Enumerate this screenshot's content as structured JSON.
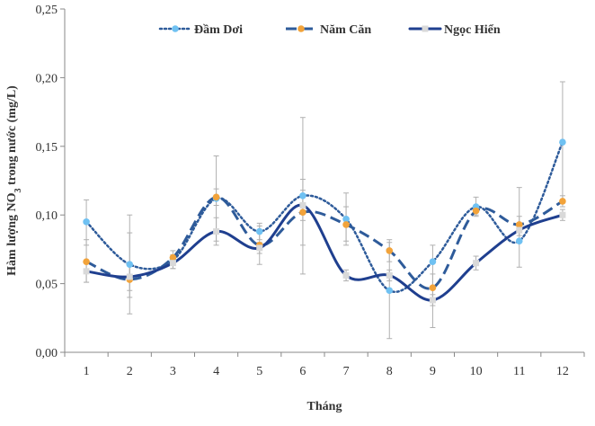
{
  "chart_data": {
    "type": "line",
    "categories": [
      "1",
      "2",
      "3",
      "4",
      "5",
      "6",
      "7",
      "8",
      "9",
      "10",
      "11",
      "12"
    ],
    "xlabel": "Tháng",
    "ylabel_parts": {
      "pre": "Hàm lượng  NO",
      "sub": "3",
      "post": " trong nước (mg/L)"
    },
    "ylim": [
      0,
      0.25
    ],
    "yticks": [
      0,
      0.05,
      0.1,
      0.15,
      0.2,
      0.25
    ],
    "ytick_labels": [
      "0,00",
      "0,05",
      "0,10",
      "0,15",
      "0,20",
      "0,25"
    ],
    "grid": false,
    "legend_position": "top",
    "series": [
      {
        "name": "Đầm Dơi",
        "style": "dotted",
        "color": "#2e5b9a",
        "marker_color": "#6fc1f2",
        "values": [
          0.095,
          0.064,
          0.067,
          0.112,
          0.088,
          0.114,
          0.097,
          0.045,
          0.066,
          0.106,
          0.081,
          0.153
        ],
        "err_high": [
          0.111,
          0.087,
          0.071,
          0.143,
          0.094,
          0.171,
          0.116,
          0.08,
          0.078,
          0.113,
          0.12,
          0.197
        ],
        "err_low": [
          0.078,
          0.04,
          0.061,
          0.081,
          0.082,
          0.057,
          0.078,
          0.01,
          0.018,
          0.099,
          0.062,
          0.111
        ]
      },
      {
        "name": "Năm Căn",
        "style": "dashed",
        "color": "#2e5b9a",
        "marker_color": "#f2a33a",
        "values": [
          0.066,
          0.053,
          0.069,
          0.113,
          0.078,
          0.102,
          0.093,
          0.074,
          0.047,
          0.103,
          0.093,
          0.11
        ],
        "err_high": [
          0.082,
          0.1,
          0.074,
          0.119,
          0.092,
          0.126,
          0.106,
          0.082,
          0.057,
          0.106,
          0.099,
          0.114
        ],
        "err_low": [
          0.051,
          0.028,
          0.064,
          0.107,
          0.064,
          0.078,
          0.081,
          0.066,
          0.037,
          0.1,
          0.087,
          0.106
        ]
      },
      {
        "name": "Ngọc Hiển",
        "style": "solid",
        "color": "#1f3f8f",
        "marker_color": "#d9d9d9",
        "values": [
          0.059,
          0.055,
          0.065,
          0.088,
          0.076,
          0.107,
          0.056,
          0.056,
          0.038,
          0.065,
          0.089,
          0.1
        ],
        "err_high": [
          0.067,
          0.065,
          0.069,
          0.098,
          0.08,
          0.118,
          0.06,
          0.06,
          0.042,
          0.07,
          0.093,
          0.104
        ],
        "err_low": [
          0.051,
          0.045,
          0.061,
          0.078,
          0.072,
          0.096,
          0.052,
          0.052,
          0.034,
          0.06,
          0.085,
          0.096
        ]
      }
    ]
  }
}
